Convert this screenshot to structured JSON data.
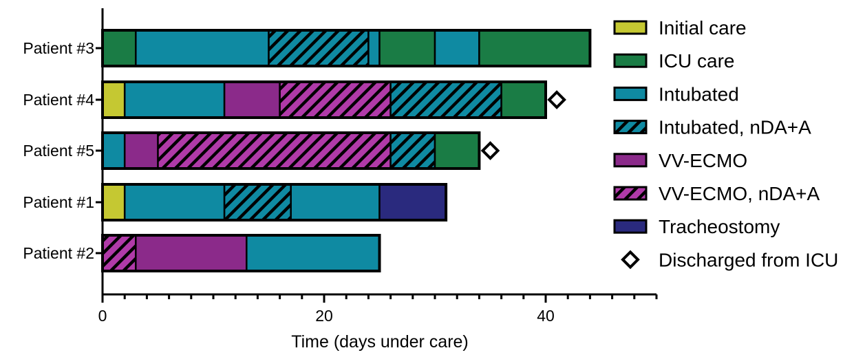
{
  "chart_data": {
    "type": "bar",
    "orientation": "horizontal-stacked",
    "xlabel": "Time (days under care)",
    "xlim": [
      0,
      50
    ],
    "xticks": [
      0,
      20,
      40
    ],
    "tick_labels": [
      "0",
      "20",
      "40"
    ],
    "minor_tick_step": 2,
    "grid": false,
    "legend_position": "right",
    "categories": [
      {
        "name": "Patient #3",
        "segments": [
          {
            "status": "ICU care",
            "start": 0,
            "end": 3
          },
          {
            "status": "Intubated",
            "start": 3,
            "end": 15
          },
          {
            "status": "Intubated, nDA+A",
            "start": 15,
            "end": 24
          },
          {
            "status": "Intubated",
            "start": 24,
            "end": 25
          },
          {
            "status": "ICU care",
            "start": 25,
            "end": 30
          },
          {
            "status": "Intubated",
            "start": 30,
            "end": 34
          },
          {
            "status": "ICU care",
            "start": 34,
            "end": 44
          }
        ],
        "discharged": null
      },
      {
        "name": "Patient #4",
        "segments": [
          {
            "status": "Initial care",
            "start": 0,
            "end": 2
          },
          {
            "status": "Intubated",
            "start": 2,
            "end": 11
          },
          {
            "status": "VV-ECMO",
            "start": 11,
            "end": 16
          },
          {
            "status": "VV-ECMO, nDA+A",
            "start": 16,
            "end": 26
          },
          {
            "status": "Intubated, nDA+A",
            "start": 26,
            "end": 36
          },
          {
            "status": "ICU care",
            "start": 36,
            "end": 40
          }
        ],
        "discharged": 41
      },
      {
        "name": "Patient #5",
        "segments": [
          {
            "status": "Intubated",
            "start": 0,
            "end": 2
          },
          {
            "status": "VV-ECMO",
            "start": 2,
            "end": 5
          },
          {
            "status": "VV-ECMO, nDA+A",
            "start": 5,
            "end": 26
          },
          {
            "status": "Intubated, nDA+A",
            "start": 26,
            "end": 30
          },
          {
            "status": "ICU care",
            "start": 30,
            "end": 34
          }
        ],
        "discharged": 35
      },
      {
        "name": "Patient #1",
        "segments": [
          {
            "status": "Initial care",
            "start": 0,
            "end": 2
          },
          {
            "status": "Intubated",
            "start": 2,
            "end": 11
          },
          {
            "status": "Intubated, nDA+A",
            "start": 11,
            "end": 17
          },
          {
            "status": "Intubated",
            "start": 17,
            "end": 25
          },
          {
            "status": "Tracheostomy",
            "start": 25,
            "end": 31
          }
        ],
        "discharged": null
      },
      {
        "name": "Patient #2",
        "segments": [
          {
            "status": "VV-ECMO, nDA+A",
            "start": 0,
            "end": 3
          },
          {
            "status": "VV-ECMO",
            "start": 3,
            "end": 13
          },
          {
            "status": "Intubated",
            "start": 13,
            "end": 25
          }
        ],
        "discharged": null
      }
    ],
    "legend": [
      {
        "label": "Initial care",
        "color": "#c5c832",
        "hatched": false,
        "marker": "box"
      },
      {
        "label": "ICU care",
        "color": "#1a7c45",
        "hatched": false,
        "marker": "box"
      },
      {
        "label": "Intubated",
        "color": "#0f8aa2",
        "hatched": false,
        "marker": "box"
      },
      {
        "label": "Intubated, nDA+A",
        "color": "#0f8aa2",
        "hatched": true,
        "marker": "box"
      },
      {
        "label": "VV-ECMO",
        "color": "#8b2a8a",
        "hatched": false,
        "marker": "box"
      },
      {
        "label": "VV-ECMO, nDA+A",
        "color": "#b03aa8",
        "hatched": true,
        "marker": "box"
      },
      {
        "label": "Tracheostomy",
        "color": "#2a2a7e",
        "hatched": false,
        "marker": "box"
      },
      {
        "label": "Discharged from ICU",
        "color": "#ffffff",
        "hatched": false,
        "marker": "diamond"
      }
    ]
  }
}
